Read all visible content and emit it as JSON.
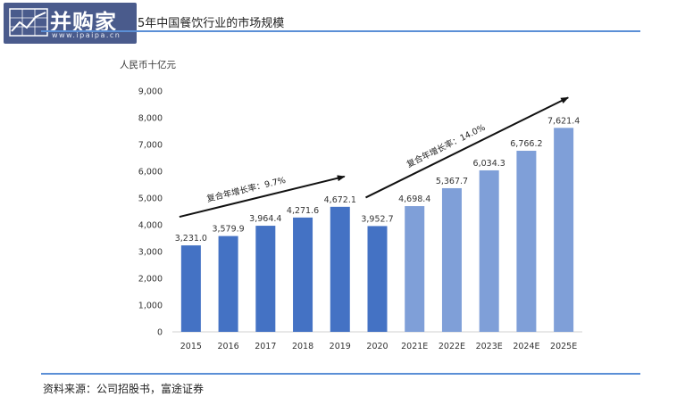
{
  "logo": {
    "name": "并购家",
    "url": "www.ipaipa.cn"
  },
  "header": {
    "title": "5年中国餐饮行业的市场规模"
  },
  "footer": {
    "source": "资料来源：公司招股书，富途证券"
  },
  "colors": {
    "actual_bar": "#4472c4",
    "forecast_bar": "#7f9fd8",
    "rule": "#5b8fd6",
    "logo_bg": "#4a5b8c"
  },
  "chart_data": {
    "type": "bar",
    "unit_label": "人民币十亿元",
    "categories": [
      "2015",
      "2016",
      "2017",
      "2018",
      "2019",
      "2020",
      "2021E",
      "2022E",
      "2023E",
      "2024E",
      "2025E"
    ],
    "values": [
      3231.0,
      3579.9,
      3964.4,
      4271.6,
      4672.1,
      3952.7,
      4698.4,
      5367.7,
      6034.3,
      6766.2,
      7621.4
    ],
    "value_labels": [
      "3,231.0",
      "3,579.9",
      "3,964.4",
      "4,271.6",
      "4,672.1",
      "3,952.7",
      "4,698.4",
      "5,367.7",
      "6,034.3",
      "6,766.2",
      "7,621.4"
    ],
    "forecast_from_index": 6,
    "ylim": [
      0,
      9000
    ],
    "yticks": [
      "0",
      "1,000",
      "2,000",
      "3,000",
      "4,000",
      "5,000",
      "6,000",
      "7,000",
      "8,000",
      "9,000"
    ],
    "grid": false,
    "annotations": [
      {
        "text": "复合年增长率：9.7%",
        "from": "2015",
        "to": "2019"
      },
      {
        "text": "复合年增长率：14.0%",
        "from": "2020",
        "to": "2025E"
      }
    ]
  }
}
